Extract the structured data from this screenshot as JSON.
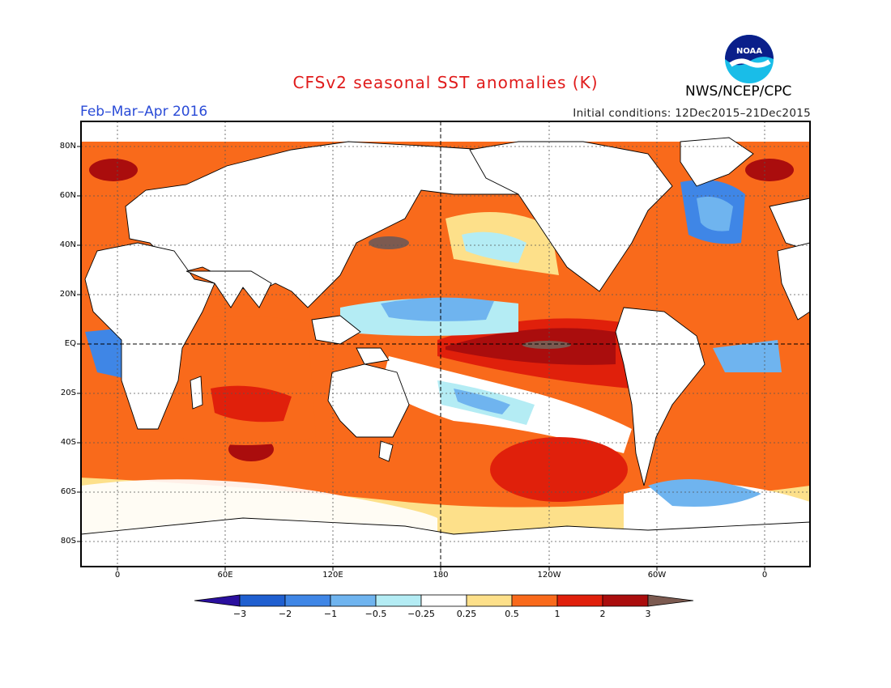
{
  "header": {
    "title": "CFSv2 seasonal SST anomalies (K)",
    "agency": "NWS/NCEP/CPC",
    "period": "Feb–Mar–Apr 2016",
    "initial_conditions": "Initial conditions: 12Dec2015–21Dec2015",
    "logo_icon": "noaa-logo-icon"
  },
  "map": {
    "lat_labels": [
      "80N",
      "60N",
      "40N",
      "20N",
      "EQ",
      "20S",
      "40S",
      "60S",
      "80S"
    ],
    "lon_labels": [
      "0",
      "60E",
      "120E",
      "180",
      "120W",
      "60W",
      "0"
    ],
    "land_color": "#ffffff",
    "coast_color": "#000000"
  },
  "colorbar": {
    "labels": [
      "−3",
      "−2",
      "−1",
      "−0.5",
      "−0.25",
      "0.25",
      "0.5",
      "1",
      "2",
      "3"
    ],
    "colors": [
      "#2a0f9e",
      "#1f5fd0",
      "#3f86e6",
      "#6fb4ef",
      "#b4ecf4",
      "#ffffff",
      "#fde08a",
      "#f96a1b",
      "#e0200b",
      "#aa0d0d",
      "#7c5a50"
    ]
  }
}
